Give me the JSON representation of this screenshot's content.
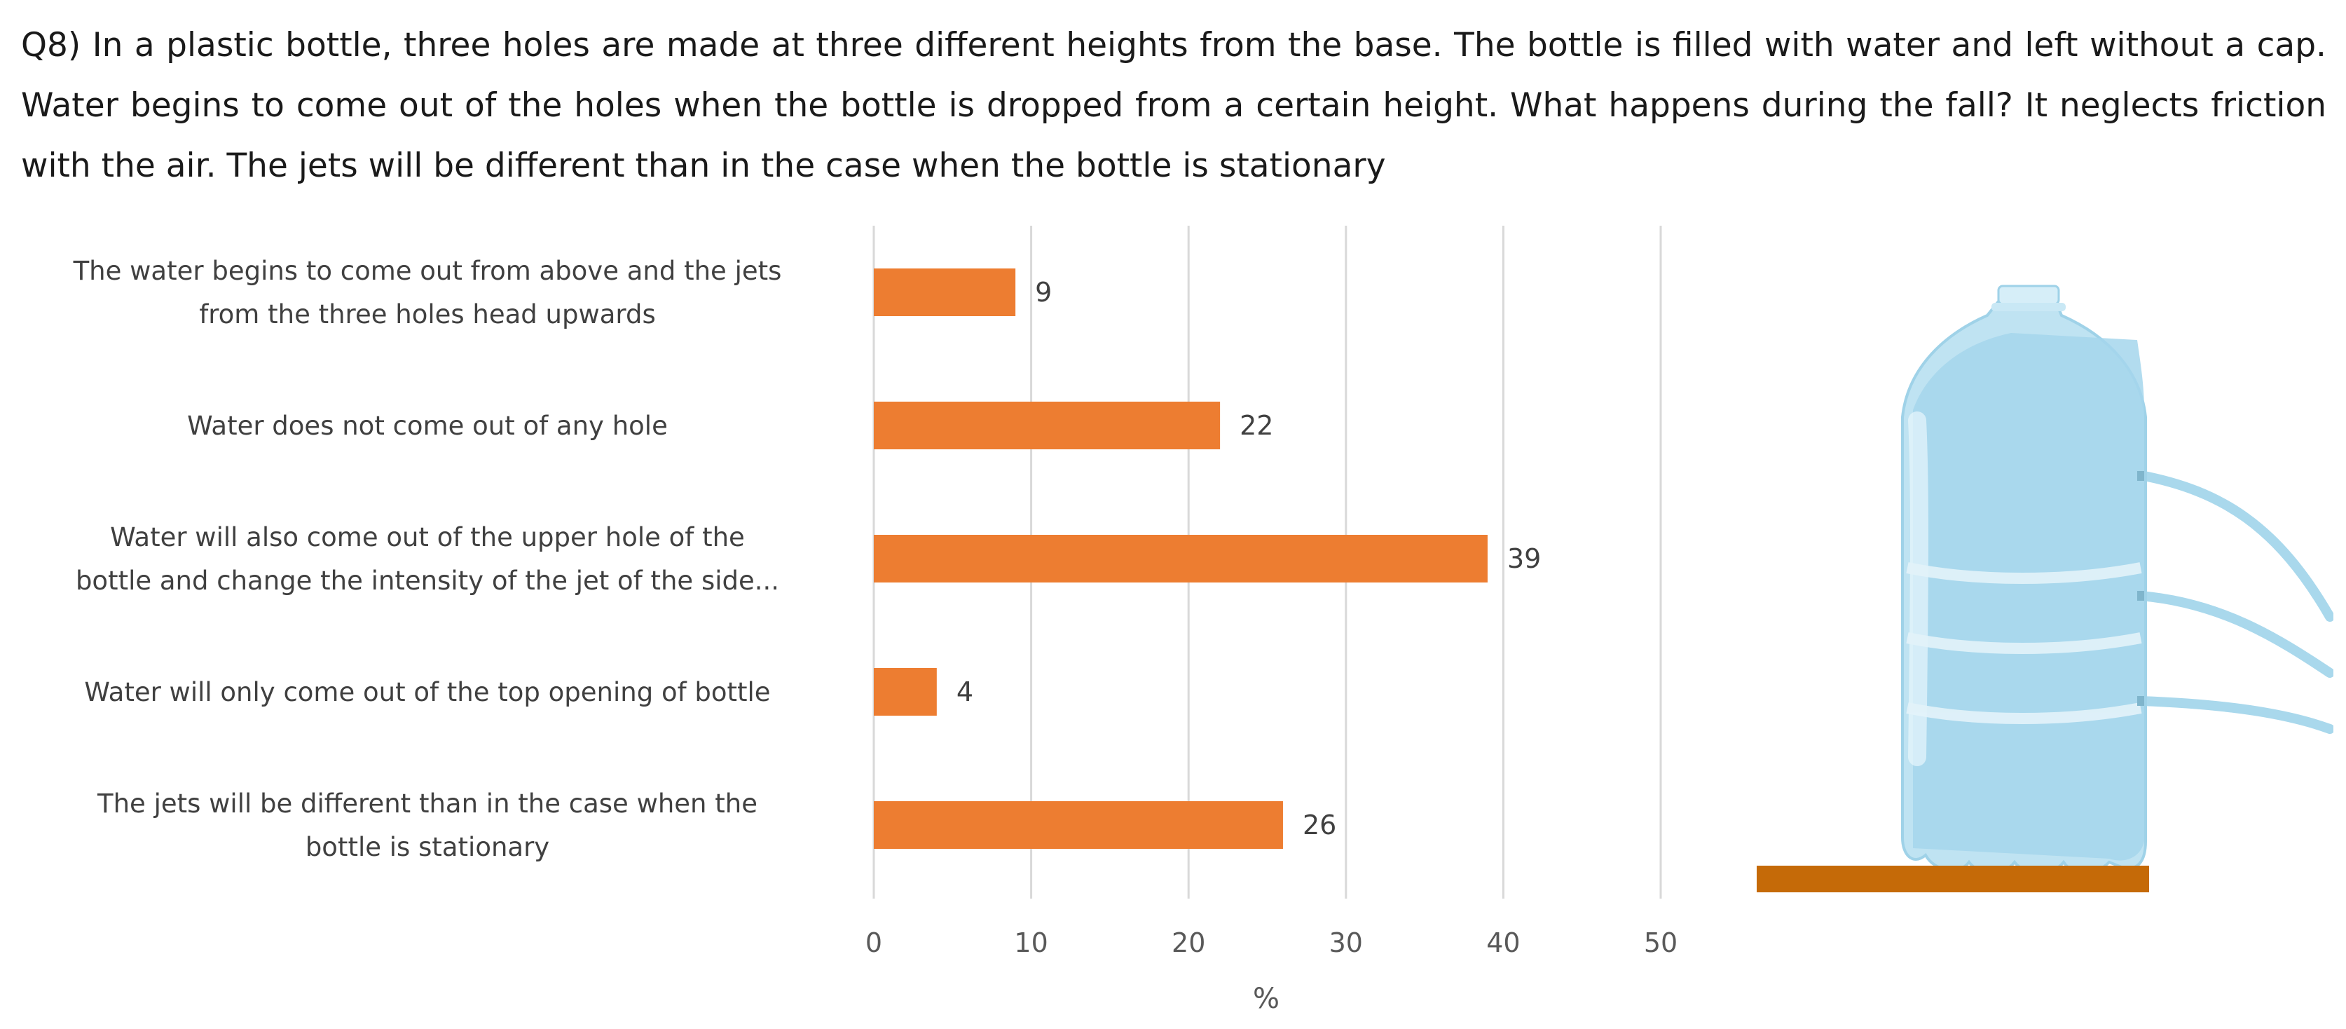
{
  "question": "Q8) In a plastic bottle, three holes are made at three different heights from the base. The bottle is filled with water and left without a cap. Water begins to come out of the holes when the bottle is dropped from a certain height. What happens during the fall? It neglects friction with the air.  The jets will be different than in the case when the bottle is stationary",
  "chart_data": {
    "type": "bar",
    "orientation": "horizontal",
    "categories": [
      [
        "The water begins to come out from above and the jets",
        "from the three holes head upwards"
      ],
      [
        "Water does not come out of any hole"
      ],
      [
        "Water will also come out of the upper hole of the",
        "bottle and change the intensity of the jet of the side..."
      ],
      [
        "Water will only come out of the top opening of bottle"
      ],
      [
        "The jets will be different than in the case when the",
        "bottle is stationary"
      ]
    ],
    "values": [
      9,
      22,
      39,
      4,
      26
    ],
    "data_labels": [
      "9",
      "22",
      "39",
      "4",
      "26"
    ],
    "xlim": [
      0,
      50
    ],
    "xticks": [
      0,
      10,
      20,
      30,
      40,
      50
    ],
    "xtick_labels": [
      "0",
      "10",
      "20",
      "30",
      "40",
      "50"
    ],
    "xlabel": "%",
    "grid": "vertical",
    "bar_color": "#ED7D31",
    "grid_color": "#D9D9D9"
  },
  "illustration": {
    "icon": "water-bottle-icon",
    "bottle_color": "#A9D8EC",
    "water_color": "#8CCDE6",
    "table_color": "#C56A08"
  }
}
